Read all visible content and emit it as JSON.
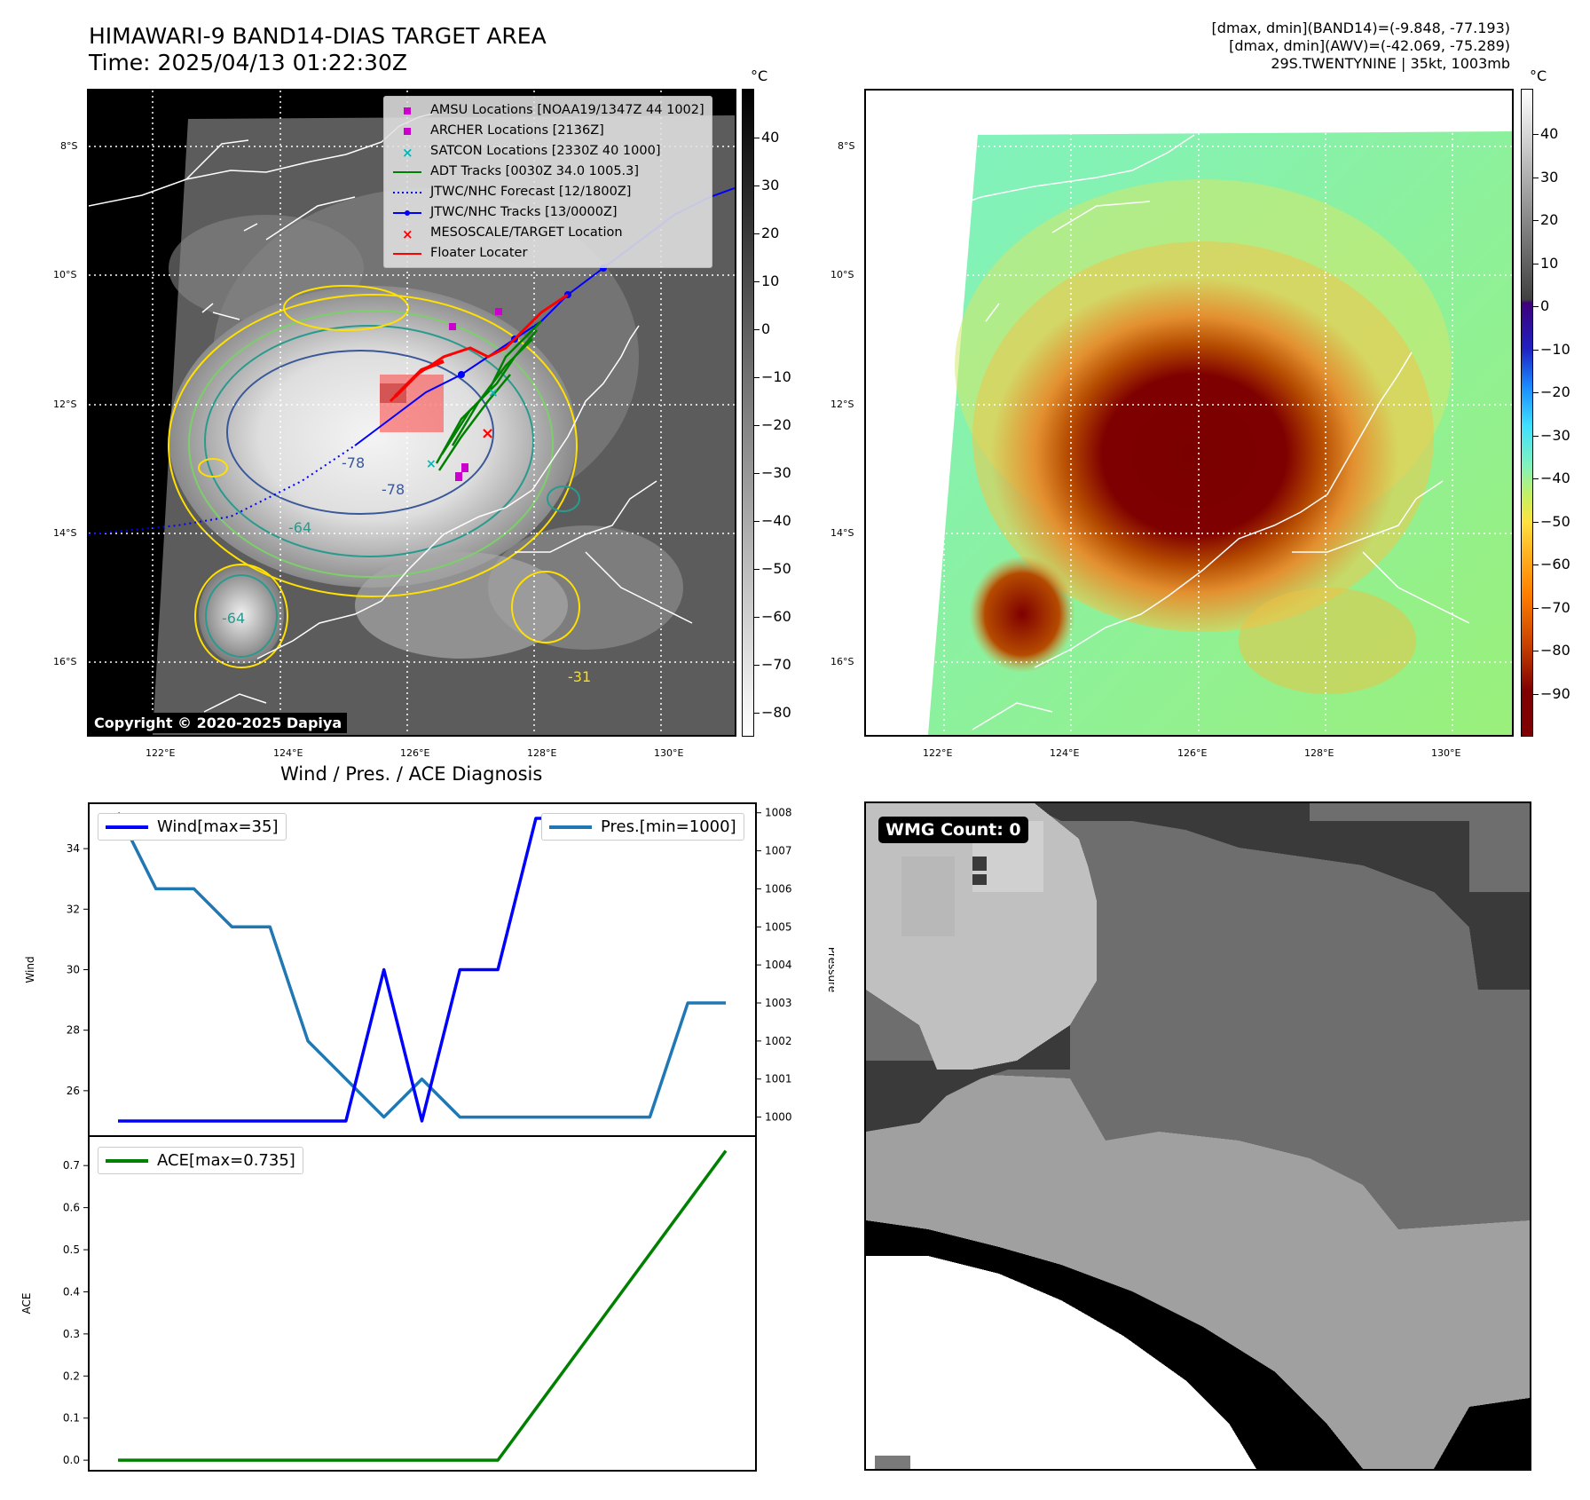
{
  "header": {
    "title_line1": "HIMAWARI-9 BAND14-DIAS TARGET AREA",
    "title_line2": "Time: 2025/04/13 01:22:30Z",
    "info_line1": "[dmax, dmin](BAND14)=(-9.848, -77.193)",
    "info_line2": "[dmax, dmin](AWV)=(-42.069, -75.289)",
    "info_line3": "29S.TWENTYNINE | 35kt, 1003mb"
  },
  "map_axes": {
    "lon_ticks": [
      "122°E",
      "124°E",
      "126°E",
      "128°E",
      "130°E"
    ],
    "lat_ticks": [
      "8°S",
      "10°S",
      "12°S",
      "14°S",
      "16°S"
    ]
  },
  "ir_panel": {
    "legend": [
      {
        "label": "AMSU Locations [NOAA19/1347Z 44 1002]",
        "symbol": "square",
        "color": "#cc00cc"
      },
      {
        "label": "ARCHER Locations [2136Z]",
        "symbol": "square",
        "color": "#cc00cc"
      },
      {
        "label": "SATCON Locations [2330Z 40 1000]",
        "symbol": "x",
        "color": "#00b8b8"
      },
      {
        "label": "ADT Tracks [0030Z 34.0 1005.3]",
        "symbol": "line",
        "color": "#008000"
      },
      {
        "label": "JTWC/NHC Forecast [12/1800Z]",
        "symbol": "dotted",
        "color": "#0000ff"
      },
      {
        "label": "JTWC/NHC Tracks [13/0000Z]",
        "symbol": "line-dot",
        "color": "#0000ff"
      },
      {
        "label": "MESOSCALE/TARGET Location",
        "symbol": "x",
        "color": "#ff0000"
      },
      {
        "label": "Floater Locater",
        "symbol": "line",
        "color": "#ff0000"
      }
    ],
    "contour_labels": [
      "-78",
      "-78",
      "-64",
      "-64",
      "-31"
    ],
    "copyright": "Copyright © 2020-2025 Dapiya",
    "cbar_unit": "°C",
    "cbar_ticks": [
      "40",
      "30",
      "20",
      "10",
      "0",
      "−10",
      "−20",
      "−30",
      "−40",
      "−50",
      "−60",
      "−70",
      "−80"
    ]
  },
  "awv_panel": {
    "cbar_unit": "°C",
    "cbar_ticks": [
      "40",
      "30",
      "20",
      "10",
      "0",
      "−10",
      "−20",
      "−30",
      "−40",
      "−50",
      "−60",
      "−70",
      "−80",
      "−90"
    ]
  },
  "chart_data": [
    {
      "type": "line",
      "title": "Wind / Pres. / ACE Diagnosis",
      "x": [
        0,
        1,
        2,
        3,
        4,
        5,
        6,
        7,
        8,
        9,
        10,
        11,
        12,
        13,
        14,
        15,
        16
      ],
      "series": [
        {
          "name": "Wind[max=35]",
          "axis": "left",
          "color": "#0000ff",
          "values": [
            25,
            25,
            25,
            25,
            25,
            25,
            25,
            30,
            25,
            30,
            30,
            35,
            35,
            35,
            35,
            35,
            35
          ]
        },
        {
          "name": "Pres.[min=1000]",
          "axis": "right",
          "color": "#1f77b4",
          "values": [
            1008,
            1006,
            1006,
            1005,
            1005,
            1002,
            1001,
            1000,
            1001,
            1000,
            1000,
            1000,
            1000,
            1000,
            1000,
            1003,
            1003
          ]
        }
      ],
      "ylabel": "Wind",
      "y2label": "Pressure",
      "ylim": [
        24.5,
        35.5
      ],
      "y2lim": [
        999.5,
        1008.25
      ],
      "yticks": [
        "26",
        "28",
        "30",
        "32",
        "34"
      ],
      "y2ticks": [
        "1000",
        "1001",
        "1002",
        "1003",
        "1004",
        "1005",
        "1006",
        "1007",
        "1008"
      ]
    },
    {
      "type": "line",
      "x": [
        0,
        1,
        2,
        3,
        4,
        5,
        6,
        7,
        8,
        9,
        10,
        11,
        12,
        13,
        14,
        15,
        16
      ],
      "series": [
        {
          "name": "ACE[max=0.735]",
          "color": "#008000",
          "values": [
            0,
            0,
            0,
            0,
            0,
            0,
            0,
            0,
            0,
            0,
            0,
            0.1225,
            0.245,
            0.3675,
            0.49,
            0.6125,
            0.735
          ]
        }
      ],
      "ylabel": "ACE",
      "ylim": [
        -0.025,
        0.77
      ],
      "yticks": [
        "0.0",
        "0.1",
        "0.2",
        "0.3",
        "0.4",
        "0.5",
        "0.6",
        "0.7"
      ]
    }
  ],
  "wmg_panel": {
    "label": "WMG Count: 0"
  }
}
